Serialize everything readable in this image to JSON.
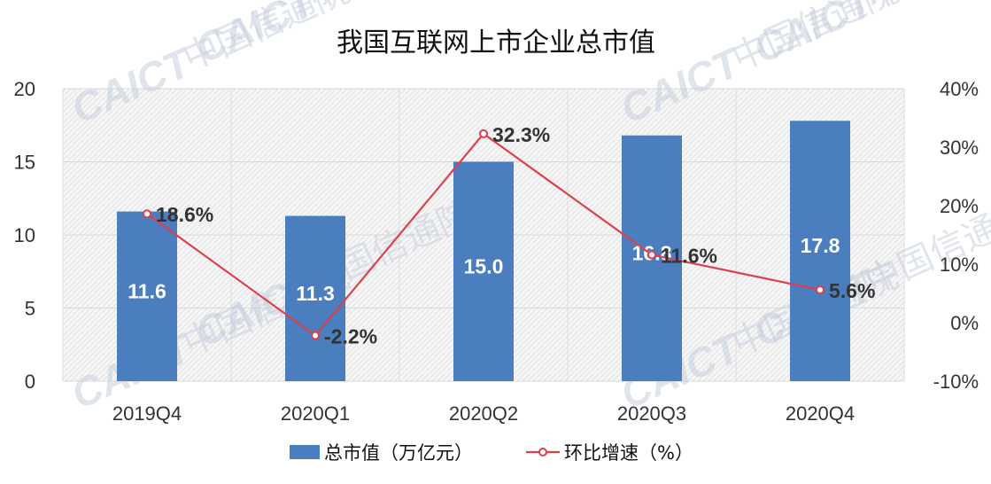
{
  "chart_data": {
    "type": "bar",
    "title": "我国互联网上市企业总市值",
    "categories": [
      "2019Q4",
      "2020Q1",
      "2020Q2",
      "2020Q3",
      "2020Q4"
    ],
    "series": [
      {
        "name": "总市值（万亿元）",
        "type": "bar",
        "axis": "left",
        "values": [
          11.6,
          11.3,
          15.0,
          16.8,
          17.8
        ],
        "labels": [
          "11.6",
          "11.3",
          "15.0",
          "16.8",
          "17.8"
        ],
        "color": "#4a7ebf"
      },
      {
        "name": "环比增速（%）",
        "type": "line",
        "axis": "right",
        "values": [
          18.6,
          -2.2,
          32.3,
          11.6,
          5.6
        ],
        "labels": [
          "18.6%",
          "-2.2%",
          "32.3%",
          "11.6%",
          "5.6%"
        ],
        "color": "#d9414e"
      }
    ],
    "left_axis": {
      "ylim": [
        0,
        20
      ],
      "ticks": [
        "0",
        "5",
        "10",
        "15",
        "20"
      ]
    },
    "right_axis": {
      "ylim": [
        -10,
        40
      ],
      "ticks": [
        "-10%",
        "0%",
        "10%",
        "20%",
        "30%",
        "40%"
      ]
    },
    "grid": true,
    "legend_position": "bottom-center"
  },
  "watermark": {
    "en": "CAICT",
    "zh": "中国信通院"
  }
}
